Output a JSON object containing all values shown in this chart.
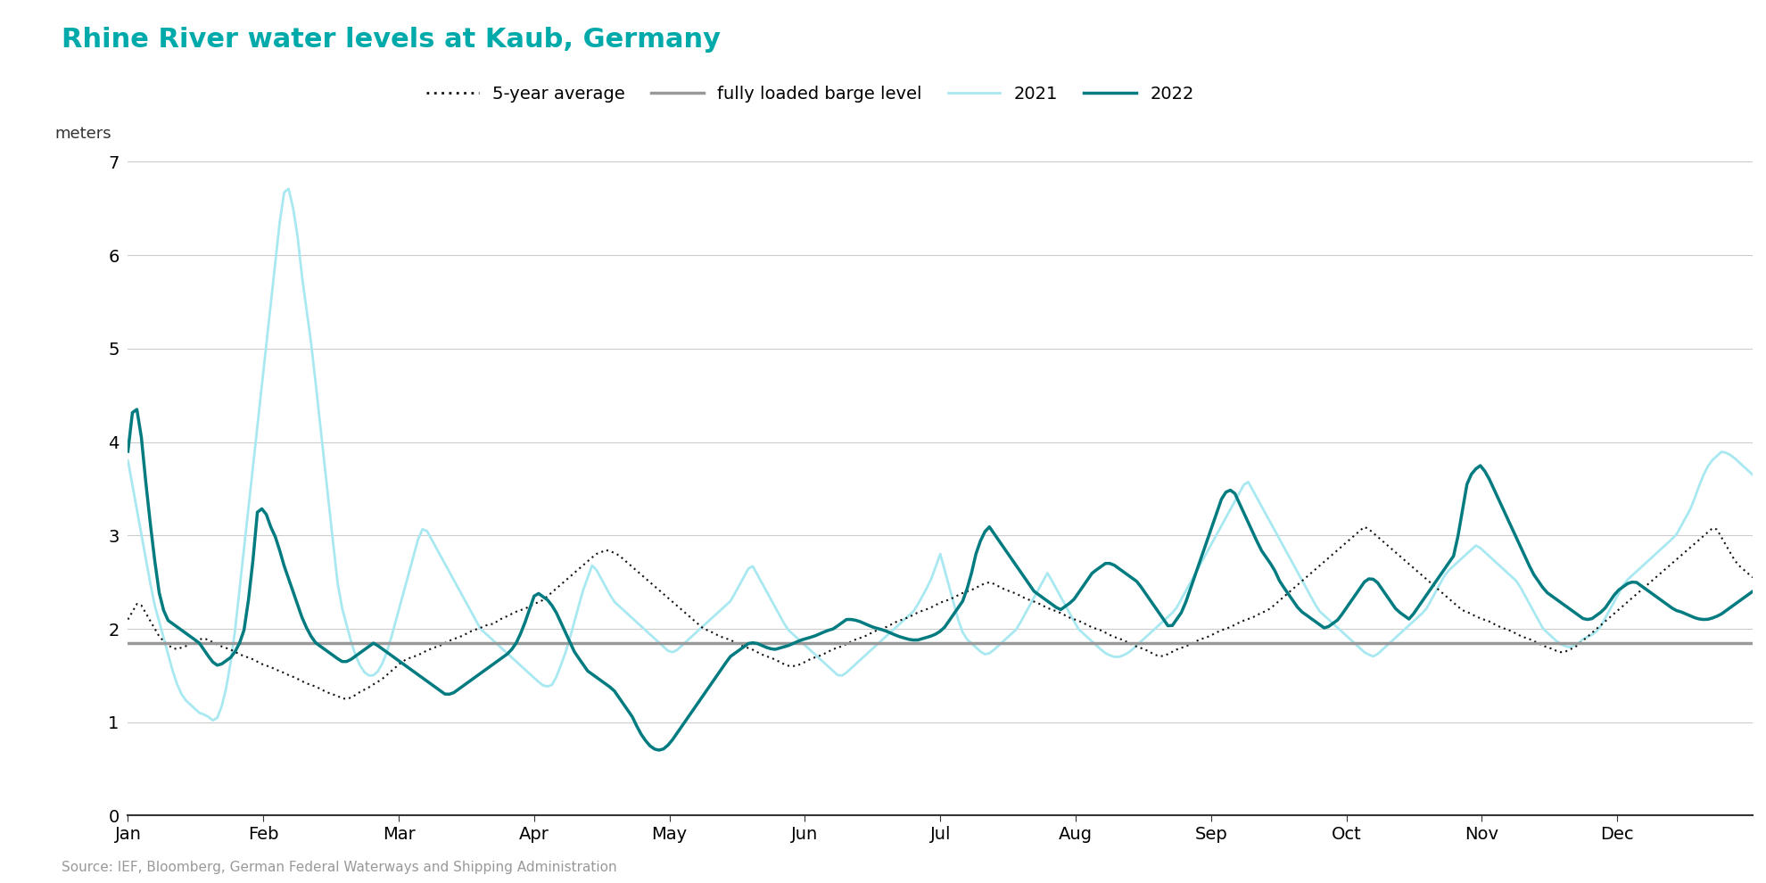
{
  "title": "Rhine River water levels at Kaub, Germany",
  "ylabel": "meters",
  "source": "Source: IEF, Bloomberg, German Federal Waterways and Shipping Administration",
  "barge_level": 1.85,
  "title_color": "#00AAAA",
  "color_2021": "#A8E8F0",
  "color_2022": "#007B80",
  "color_avg": "#111111",
  "color_barge": "#999999",
  "ylim": [
    0,
    7
  ],
  "yticks": [
    0,
    1,
    2,
    3,
    4,
    5,
    6,
    7
  ],
  "months": [
    "Jan",
    "Feb",
    "Mar",
    "Apr",
    "May",
    "Jun",
    "Jul",
    "Aug",
    "Sep",
    "Oct",
    "Nov",
    "Dec"
  ],
  "data_2022": [
    3.9,
    4.5,
    4.1,
    3.4,
    2.8,
    2.3,
    2.1,
    2.05,
    2.0,
    1.95,
    1.9,
    1.85,
    1.75,
    1.65,
    1.6,
    1.65,
    1.7,
    1.8,
    2.0,
    2.5,
    3.25,
    3.3,
    3.1,
    2.95,
    2.7,
    2.5,
    2.3,
    2.1,
    1.95,
    1.85,
    1.8,
    1.75,
    1.7,
    1.65,
    1.65,
    1.7,
    1.75,
    1.8,
    1.85,
    1.8,
    1.75,
    1.7,
    1.65,
    1.6,
    1.55,
    1.5,
    1.45,
    1.4,
    1.35,
    1.3,
    1.3,
    1.35,
    1.4,
    1.45,
    1.5,
    1.55,
    1.6,
    1.65,
    1.7,
    1.75,
    1.85,
    2.0,
    2.2,
    2.4,
    2.35,
    2.3,
    2.2,
    2.05,
    1.9,
    1.75,
    1.65,
    1.55,
    1.5,
    1.45,
    1.4,
    1.35,
    1.25,
    1.15,
    1.05,
    0.9,
    0.8,
    0.72,
    0.7,
    0.72,
    0.8,
    0.9,
    1.0,
    1.1,
    1.2,
    1.3,
    1.4,
    1.5,
    1.6,
    1.7,
    1.75,
    1.8,
    1.85,
    1.85,
    1.82,
    1.79,
    1.78,
    1.8,
    1.82,
    1.85,
    1.88,
    1.9,
    1.92,
    1.95,
    1.98,
    2.0,
    2.05,
    2.1,
    2.1,
    2.08,
    2.05,
    2.02,
    2.0,
    1.98,
    1.95,
    1.92,
    1.9,
    1.88,
    1.88,
    1.9,
    1.92,
    1.95,
    2.0,
    2.1,
    2.2,
    2.3,
    2.5,
    2.8,
    3.0,
    3.1,
    3.0,
    2.9,
    2.8,
    2.7,
    2.6,
    2.5,
    2.4,
    2.35,
    2.3,
    2.25,
    2.2,
    2.25,
    2.3,
    2.4,
    2.5,
    2.6,
    2.65,
    2.7,
    2.7,
    2.65,
    2.6,
    2.55,
    2.5,
    2.4,
    2.3,
    2.2,
    2.1,
    2.0,
    2.1,
    2.2,
    2.4,
    2.6,
    2.8,
    3.0,
    3.2,
    3.4,
    3.5,
    3.45,
    3.3,
    3.15,
    3.0,
    2.85,
    2.75,
    2.65,
    2.5,
    2.4,
    2.3,
    2.2,
    2.15,
    2.1,
    2.05,
    2.0,
    2.05,
    2.1,
    2.2,
    2.3,
    2.4,
    2.5,
    2.55,
    2.5,
    2.4,
    2.3,
    2.2,
    2.15,
    2.1,
    2.2,
    2.3,
    2.4,
    2.5,
    2.6,
    2.7,
    2.8,
    3.2,
    3.6,
    3.7,
    3.75,
    3.65,
    3.5,
    3.35,
    3.2,
    3.05,
    2.9,
    2.75,
    2.6,
    2.5,
    2.4,
    2.35,
    2.3,
    2.25,
    2.2,
    2.15,
    2.1,
    2.1,
    2.15,
    2.2,
    2.3,
    2.4,
    2.45,
    2.5,
    2.5,
    2.45,
    2.4,
    2.35,
    2.3,
    2.25,
    2.2,
    2.18,
    2.15,
    2.12,
    2.1,
    2.1,
    2.12,
    2.15,
    2.2,
    2.25,
    2.3,
    2.35,
    2.4
  ],
  "data_2021": [
    3.8,
    3.5,
    3.2,
    2.9,
    2.6,
    2.3,
    2.1,
    1.9,
    1.7,
    1.5,
    1.35,
    1.25,
    1.2,
    1.15,
    1.1,
    1.08,
    1.05,
    1.0,
    1.1,
    1.3,
    1.6,
    2.0,
    2.5,
    3.0,
    3.5,
    4.0,
    4.5,
    5.0,
    5.5,
    6.0,
    6.5,
    6.8,
    6.6,
    6.3,
    5.8,
    5.4,
    5.0,
    4.5,
    4.0,
    3.5,
    3.0,
    2.5,
    2.2,
    2.0,
    1.8,
    1.65,
    1.55,
    1.5,
    1.5,
    1.55,
    1.65,
    1.8,
    2.0,
    2.2,
    2.4,
    2.6,
    2.8,
    3.0,
    3.1,
    3.0,
    2.9,
    2.8,
    2.7,
    2.6,
    2.5,
    2.4,
    2.3,
    2.2,
    2.1,
    2.0,
    1.95,
    1.9,
    1.85,
    1.8,
    1.75,
    1.7,
    1.65,
    1.6,
    1.55,
    1.5,
    1.45,
    1.4,
    1.38,
    1.4,
    1.5,
    1.65,
    1.8,
    2.0,
    2.2,
    2.4,
    2.55,
    2.7,
    2.6,
    2.5,
    2.4,
    2.3,
    2.25,
    2.2,
    2.15,
    2.1,
    2.05,
    2.0,
    1.95,
    1.9,
    1.85,
    1.8,
    1.75,
    1.75,
    1.8,
    1.85,
    1.9,
    1.95,
    2.0,
    2.05,
    2.1,
    2.15,
    2.2,
    2.25,
    2.3,
    2.4,
    2.5,
    2.6,
    2.7,
    2.6,
    2.5,
    2.4,
    2.3,
    2.2,
    2.1,
    2.0,
    1.95,
    1.9,
    1.85,
    1.8,
    1.75,
    1.7,
    1.65,
    1.6,
    1.55,
    1.5,
    1.5,
    1.55,
    1.6,
    1.65,
    1.7,
    1.75,
    1.8,
    1.85,
    1.9,
    1.95,
    2.0,
    2.05,
    2.1,
    2.15,
    2.2,
    2.3,
    2.4,
    2.5,
    2.65,
    2.8,
    2.6,
    2.4,
    2.2,
    2.0,
    1.9,
    1.85,
    1.8,
    1.75,
    1.72,
    1.75,
    1.8,
    1.85,
    1.9,
    1.95,
    2.0,
    2.1,
    2.2,
    2.3,
    2.4,
    2.5,
    2.6,
    2.5,
    2.4,
    2.3,
    2.2,
    2.1,
    2.0,
    1.95,
    1.9,
    1.85,
    1.8,
    1.75,
    1.72,
    1.7,
    1.7,
    1.72,
    1.75,
    1.8,
    1.85,
    1.9,
    1.95,
    2.0,
    2.05,
    2.1,
    2.15,
    2.2,
    2.3,
    2.4,
    2.5,
    2.6,
    2.7,
    2.8,
    2.9,
    3.0,
    3.1,
    3.2,
    3.3,
    3.4,
    3.5,
    3.6,
    3.5,
    3.4,
    3.3,
    3.2,
    3.1,
    3.0,
    2.9,
    2.8,
    2.7,
    2.6,
    2.5,
    2.4,
    2.3,
    2.2,
    2.15,
    2.1,
    2.05,
    2.0,
    1.95,
    1.9,
    1.85,
    1.8,
    1.75,
    1.72,
    1.7,
    1.75,
    1.8,
    1.85,
    1.9,
    1.95,
    2.0,
    2.05,
    2.1,
    2.15,
    2.2,
    2.3,
    2.4,
    2.5,
    2.6,
    2.65,
    2.7,
    2.75,
    2.8,
    2.85,
    2.9,
    2.85,
    2.8,
    2.75,
    2.7,
    2.65,
    2.6,
    2.55,
    2.5,
    2.4,
    2.3,
    2.2,
    2.1,
    2.0,
    1.95,
    1.9,
    1.85,
    1.82,
    1.8,
    1.82,
    1.85,
    1.9,
    1.92,
    1.95,
    2.0,
    2.1,
    2.2,
    2.3,
    2.4,
    2.5,
    2.55,
    2.6,
    2.65,
    2.7,
    2.75,
    2.8,
    2.85,
    2.9,
    2.95,
    3.0,
    3.1,
    3.2,
    3.3,
    3.45,
    3.6,
    3.72,
    3.8,
    3.85,
    3.9,
    3.88,
    3.85,
    3.8,
    3.75,
    3.7,
    3.65
  ],
  "data_avg": [
    2.1,
    2.2,
    2.3,
    2.2,
    2.1,
    2.0,
    1.9,
    1.85,
    1.8,
    1.78,
    1.8,
    1.82,
    1.85,
    1.88,
    1.9,
    1.88,
    1.85,
    1.82,
    1.8,
    1.78,
    1.75,
    1.72,
    1.7,
    1.68,
    1.65,
    1.62,
    1.6,
    1.58,
    1.55,
    1.53,
    1.5,
    1.48,
    1.45,
    1.42,
    1.4,
    1.38,
    1.35,
    1.32,
    1.3,
    1.28,
    1.25,
    1.25,
    1.28,
    1.32,
    1.35,
    1.38,
    1.42,
    1.45,
    1.5,
    1.55,
    1.6,
    1.65,
    1.68,
    1.7,
    1.72,
    1.75,
    1.78,
    1.8,
    1.82,
    1.85,
    1.88,
    1.9,
    1.92,
    1.95,
    1.98,
    2.0,
    2.02,
    2.05,
    2.05,
    2.1,
    2.12,
    2.15,
    2.18,
    2.2,
    2.22,
    2.25,
    2.28,
    2.3,
    2.35,
    2.4,
    2.45,
    2.5,
    2.55,
    2.6,
    2.65,
    2.7,
    2.75,
    2.8,
    2.82,
    2.85,
    2.82,
    2.8,
    2.75,
    2.7,
    2.65,
    2.6,
    2.55,
    2.5,
    2.45,
    2.4,
    2.35,
    2.3,
    2.25,
    2.2,
    2.15,
    2.1,
    2.05,
    2.0,
    1.98,
    1.95,
    1.92,
    1.9,
    1.88,
    1.85,
    1.82,
    1.8,
    1.78,
    1.75,
    1.72,
    1.7,
    1.68,
    1.65,
    1.62,
    1.6,
    1.6,
    1.62,
    1.65,
    1.68,
    1.7,
    1.72,
    1.75,
    1.78,
    1.8,
    1.82,
    1.85,
    1.88,
    1.9,
    1.92,
    1.95,
    1.98,
    2.0,
    2.02,
    2.05,
    2.08,
    2.1,
    2.12,
    2.15,
    2.18,
    2.2,
    2.22,
    2.25,
    2.28,
    2.3,
    2.32,
    2.35,
    2.38,
    2.4,
    2.42,
    2.45,
    2.48,
    2.5,
    2.48,
    2.45,
    2.42,
    2.4,
    2.38,
    2.35,
    2.32,
    2.3,
    2.28,
    2.25,
    2.22,
    2.2,
    2.18,
    2.15,
    2.12,
    2.1,
    2.08,
    2.05,
    2.02,
    2.0,
    1.98,
    1.95,
    1.92,
    1.9,
    1.88,
    1.85,
    1.82,
    1.8,
    1.78,
    1.75,
    1.72,
    1.7,
    1.72,
    1.75,
    1.78,
    1.8,
    1.82,
    1.85,
    1.88,
    1.9,
    1.92,
    1.95,
    1.98,
    2.0,
    2.02,
    2.05,
    2.08,
    2.1,
    2.12,
    2.15,
    2.18,
    2.2,
    2.25,
    2.3,
    2.35,
    2.4,
    2.45,
    2.5,
    2.55,
    2.6,
    2.65,
    2.7,
    2.75,
    2.8,
    2.85,
    2.9,
    2.95,
    3.0,
    3.05,
    3.1,
    3.05,
    3.0,
    2.95,
    2.9,
    2.85,
    2.8,
    2.75,
    2.7,
    2.65,
    2.6,
    2.55,
    2.5,
    2.45,
    2.4,
    2.35,
    2.3,
    2.25,
    2.2,
    2.18,
    2.15,
    2.12,
    2.1,
    2.08,
    2.05,
    2.02,
    2.0,
    1.98,
    1.95,
    1.92,
    1.9,
    1.88,
    1.85,
    1.82,
    1.8,
    1.78,
    1.75,
    1.75,
    1.78,
    1.8,
    1.85,
    1.9,
    1.95,
    2.0,
    2.05,
    2.1,
    2.15,
    2.2,
    2.25,
    2.3,
    2.35,
    2.4,
    2.45,
    2.5,
    2.55,
    2.6,
    2.65,
    2.7,
    2.75,
    2.8,
    2.85,
    2.9,
    2.95,
    3.0,
    3.05,
    3.1,
    3.0,
    2.9,
    2.8,
    2.7,
    2.65,
    2.6,
    2.55
  ]
}
